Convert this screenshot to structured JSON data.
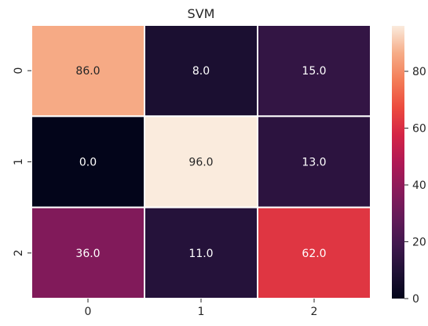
{
  "chart_data": {
    "type": "heatmap",
    "title": "SVM",
    "xlabel": "",
    "ylabel": "",
    "x_categories": [
      "0",
      "1",
      "2"
    ],
    "y_categories": [
      "0",
      "1",
      "2"
    ],
    "values": [
      [
        86.0,
        8.0,
        15.0
      ],
      [
        0.0,
        96.0,
        13.0
      ],
      [
        36.0,
        11.0,
        62.0
      ]
    ],
    "annotations": [
      [
        "86.0",
        "8.0",
        "15.0"
      ],
      [
        "0.0",
        "96.0",
        "13.0"
      ],
      [
        "36.0",
        "11.0",
        "62.0"
      ]
    ],
    "colorbar": {
      "min": 0,
      "max": 96,
      "ticks": [
        0,
        20,
        40,
        60,
        80
      ],
      "colormap": "rocket"
    },
    "grid": false
  }
}
